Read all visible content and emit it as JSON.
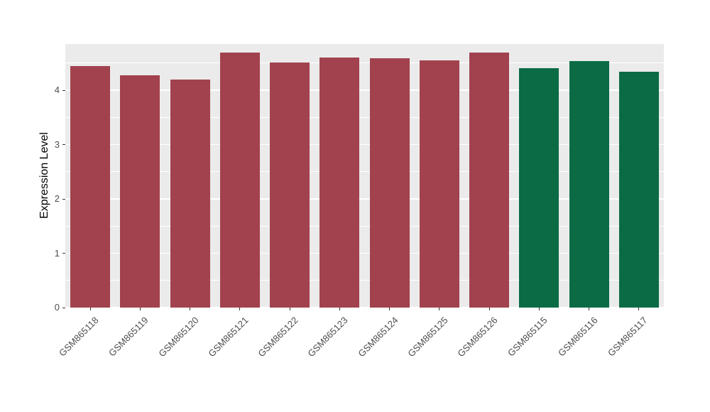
{
  "chart_data": {
    "type": "bar",
    "title": "",
    "xlabel": "",
    "ylabel": "Expression Level",
    "ylim": [
      0,
      4.85
    ],
    "yticks": [
      0,
      1,
      2,
      3,
      4
    ],
    "grid": "on",
    "legend_position": "none",
    "panel_bg": "#EBEBEB",
    "grid_color": "#FFFFFF",
    "categories": [
      "GSM865118",
      "GSM865119",
      "GSM865120",
      "GSM865121",
      "GSM865122",
      "GSM865123",
      "GSM865124",
      "GSM865125",
      "GSM865126",
      "GSM865115",
      "GSM865116",
      "GSM865117"
    ],
    "series": [
      {
        "name": "Expression Level",
        "values": [
          4.44,
          4.27,
          4.2,
          4.69,
          4.51,
          4.6,
          4.59,
          4.55,
          4.69,
          4.41,
          4.53,
          4.34
        ],
        "bar_colors": [
          "#A2424E",
          "#A2424E",
          "#A2424E",
          "#A2424E",
          "#A2424E",
          "#A2424E",
          "#A2424E",
          "#A2424E",
          "#A2424E",
          "#0A6B45",
          "#0A6B45",
          "#0A6B45"
        ]
      }
    ],
    "group_colors": {
      "red_group": "#A2424E",
      "green_group": "#0A6B45"
    }
  }
}
